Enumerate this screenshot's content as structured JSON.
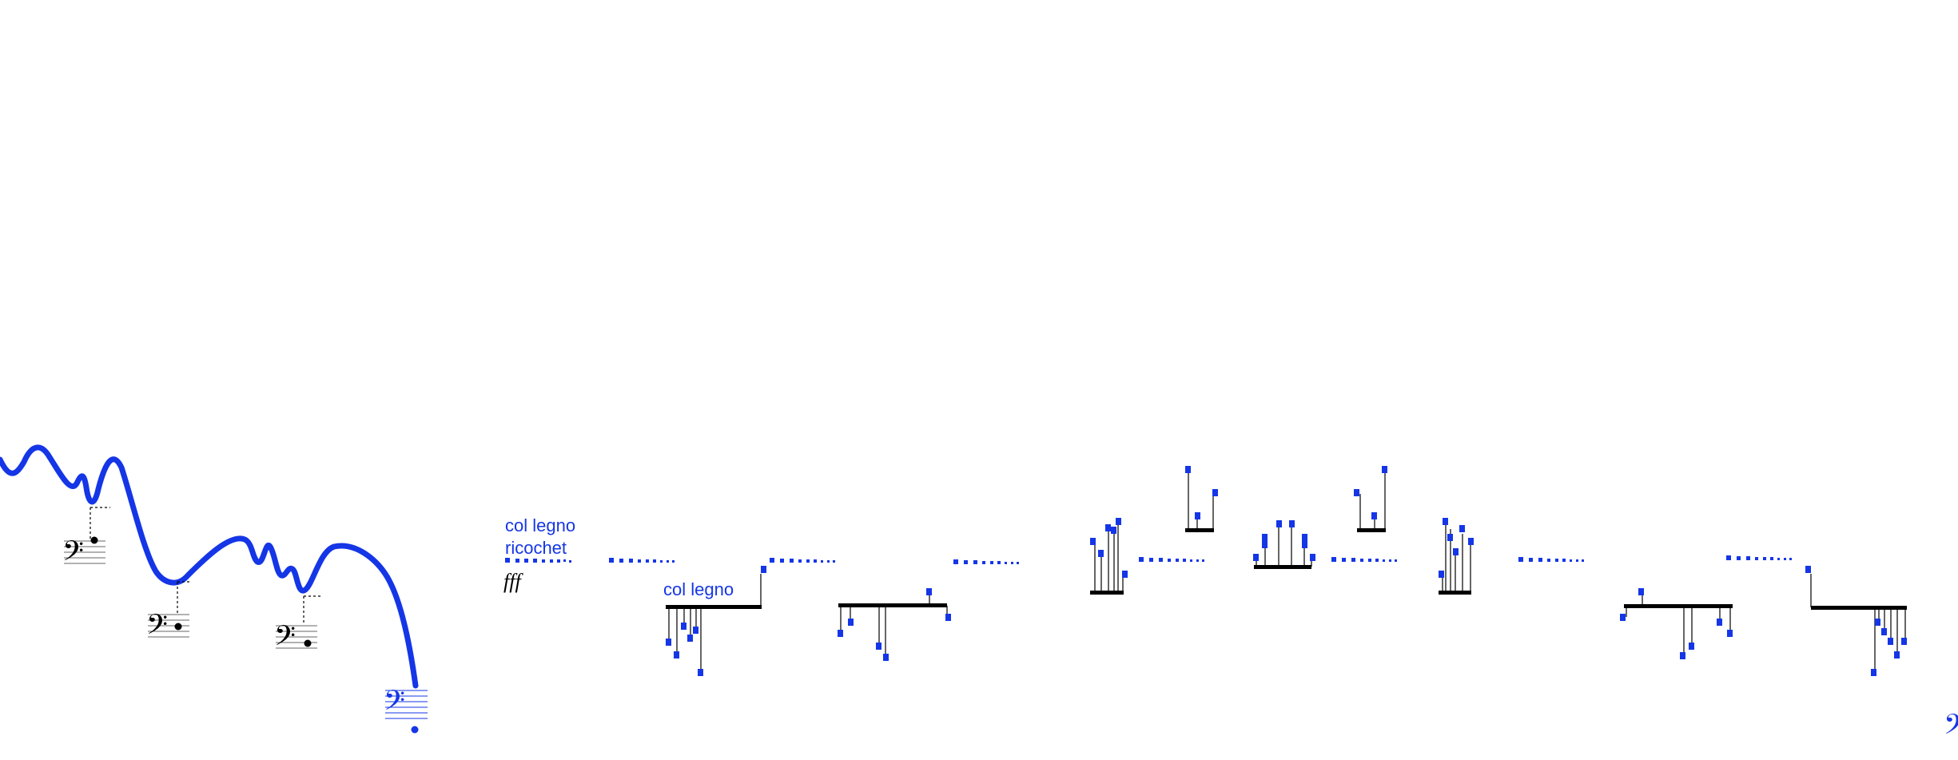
{
  "colors": {
    "ink": "#1536e6",
    "black": "#000000",
    "staff_grey": "#666666"
  },
  "glyphs": {
    "bass_clef": "𝄢"
  },
  "annotations": {
    "col_legno_ricochet_line1": "col legno",
    "col_legno_ricochet_line2": "ricochet",
    "dynamic": "fff",
    "col_legno": "col legno"
  },
  "icons": [
    "bass-clef-icon",
    "glissando-curve",
    "dotted-tremolo",
    "stem-cluster"
  ]
}
